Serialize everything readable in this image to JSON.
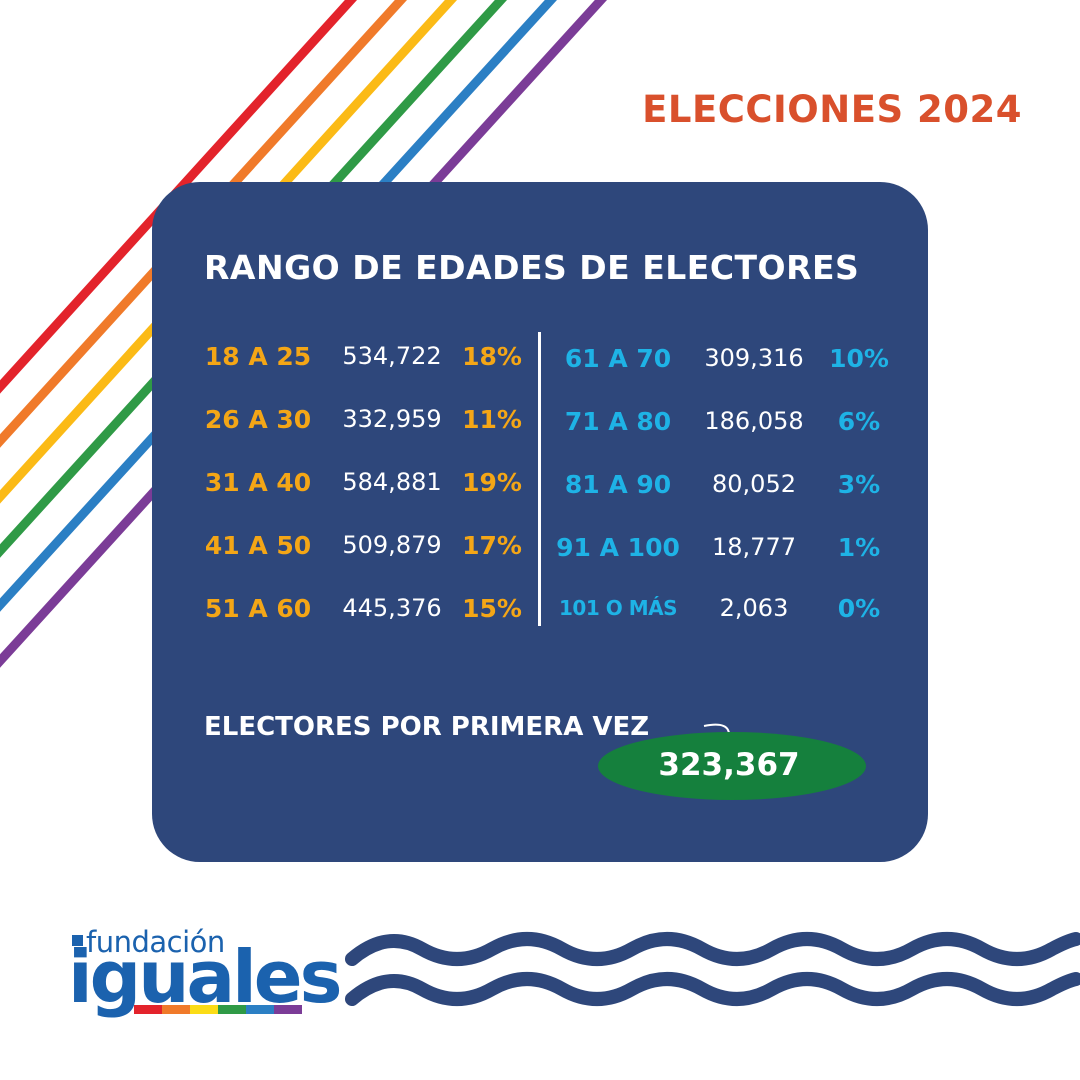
{
  "header": {
    "title": "ELECCIONES 2024"
  },
  "card": {
    "title": "RANGO DE EDADES DE ELECTORES",
    "left": [
      {
        "range": "18 A 25",
        "count": "534,722",
        "pct": "18%"
      },
      {
        "range": "26 A 30",
        "count": "332,959",
        "pct": "11%"
      },
      {
        "range": "31 A 40",
        "count": "584,881",
        "pct": "19%"
      },
      {
        "range": "41 A 50",
        "count": "509,879",
        "pct": "17%"
      },
      {
        "range": "51 A 60",
        "count": "445,376",
        "pct": "15%"
      }
    ],
    "right": [
      {
        "range": "61 A 70",
        "count": "309,316",
        "pct": "10%"
      },
      {
        "range": "71 A 80",
        "count": "186,058",
        "pct": "6%"
      },
      {
        "range": "81 A 90",
        "count": "80,052",
        "pct": "3%"
      },
      {
        "range": "91 A 100",
        "count": "18,777",
        "pct": "1%"
      },
      {
        "range": "101 O MÁS",
        "count": "2,063",
        "pct": "0%"
      }
    ],
    "first_time": {
      "label": "ELECTORES POR PRIMERA VEZ",
      "value": "323,367"
    }
  },
  "logo": {
    "top_text": "fundación",
    "main_text": "iguales"
  },
  "colors": {
    "accent": "#d9502c",
    "card": "#2e477b",
    "left_highlight": "#f4a616",
    "right_highlight": "#1eb3e6",
    "first_time_oval": "#15803d",
    "logo_blue": "#1b62ae",
    "rainbow": [
      "#e3232b",
      "#f07a2a",
      "#fbba16",
      "#2f9a46",
      "#2b7fc4",
      "#7b3c97"
    ]
  }
}
